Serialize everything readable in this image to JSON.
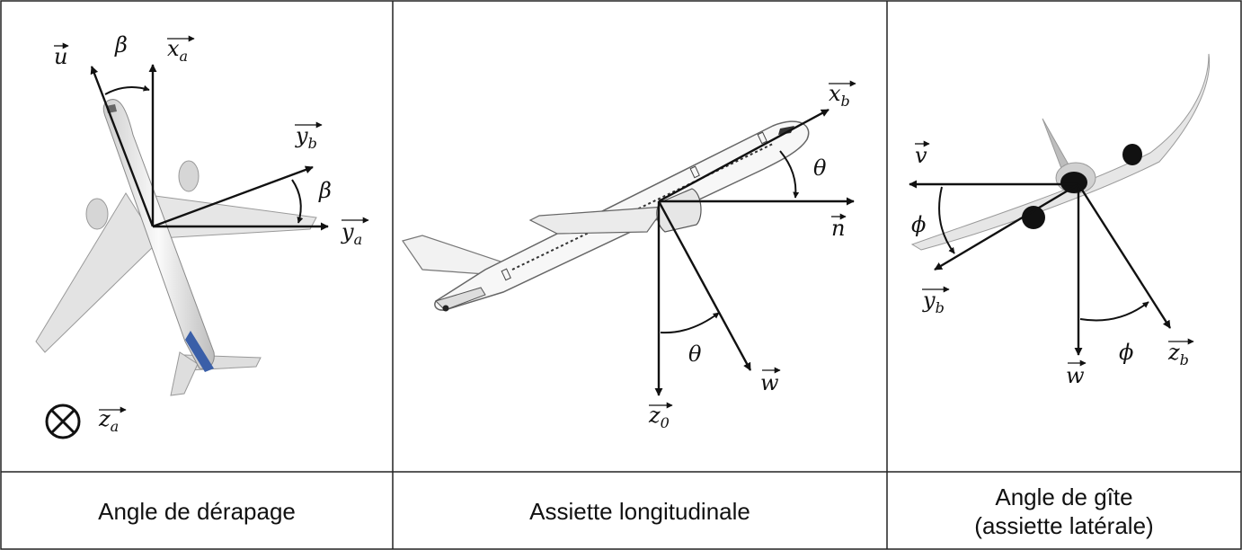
{
  "panels": [
    {
      "caption_line1": "Angle de dérapage",
      "caption_line2": "",
      "labels": {
        "u": "u",
        "xa": "x",
        "xa_sub": "a",
        "yb": "y",
        "yb_sub": "b",
        "ya": "y",
        "ya_sub": "a",
        "za": "z",
        "za_sub": "a",
        "beta_top": "β",
        "beta_right": "β"
      }
    },
    {
      "caption_line1": "Assiette longitudinale",
      "caption_line2": "",
      "labels": {
        "xb": "x",
        "xb_sub": "b",
        "n": "n",
        "theta_top": "θ",
        "theta_bottom": "θ",
        "z0": "z",
        "z0_sub": "0",
        "w": "w"
      }
    },
    {
      "caption_line1": "Angle de gîte",
      "caption_line2": "(assiette latérale)",
      "labels": {
        "v": "v",
        "phi_left": "ϕ",
        "yb": "y",
        "yb_sub": "b",
        "w": "w",
        "phi_bottom": "ϕ",
        "zb": "z",
        "zb_sub": "b"
      }
    }
  ],
  "colors": {
    "line": "#111111",
    "border": "#222222",
    "aircraft_fill": "#ececec",
    "aircraft_stroke": "#8a8a8a",
    "tail_blue": "#3a5fa8",
    "engine_dark": "#111111"
  }
}
